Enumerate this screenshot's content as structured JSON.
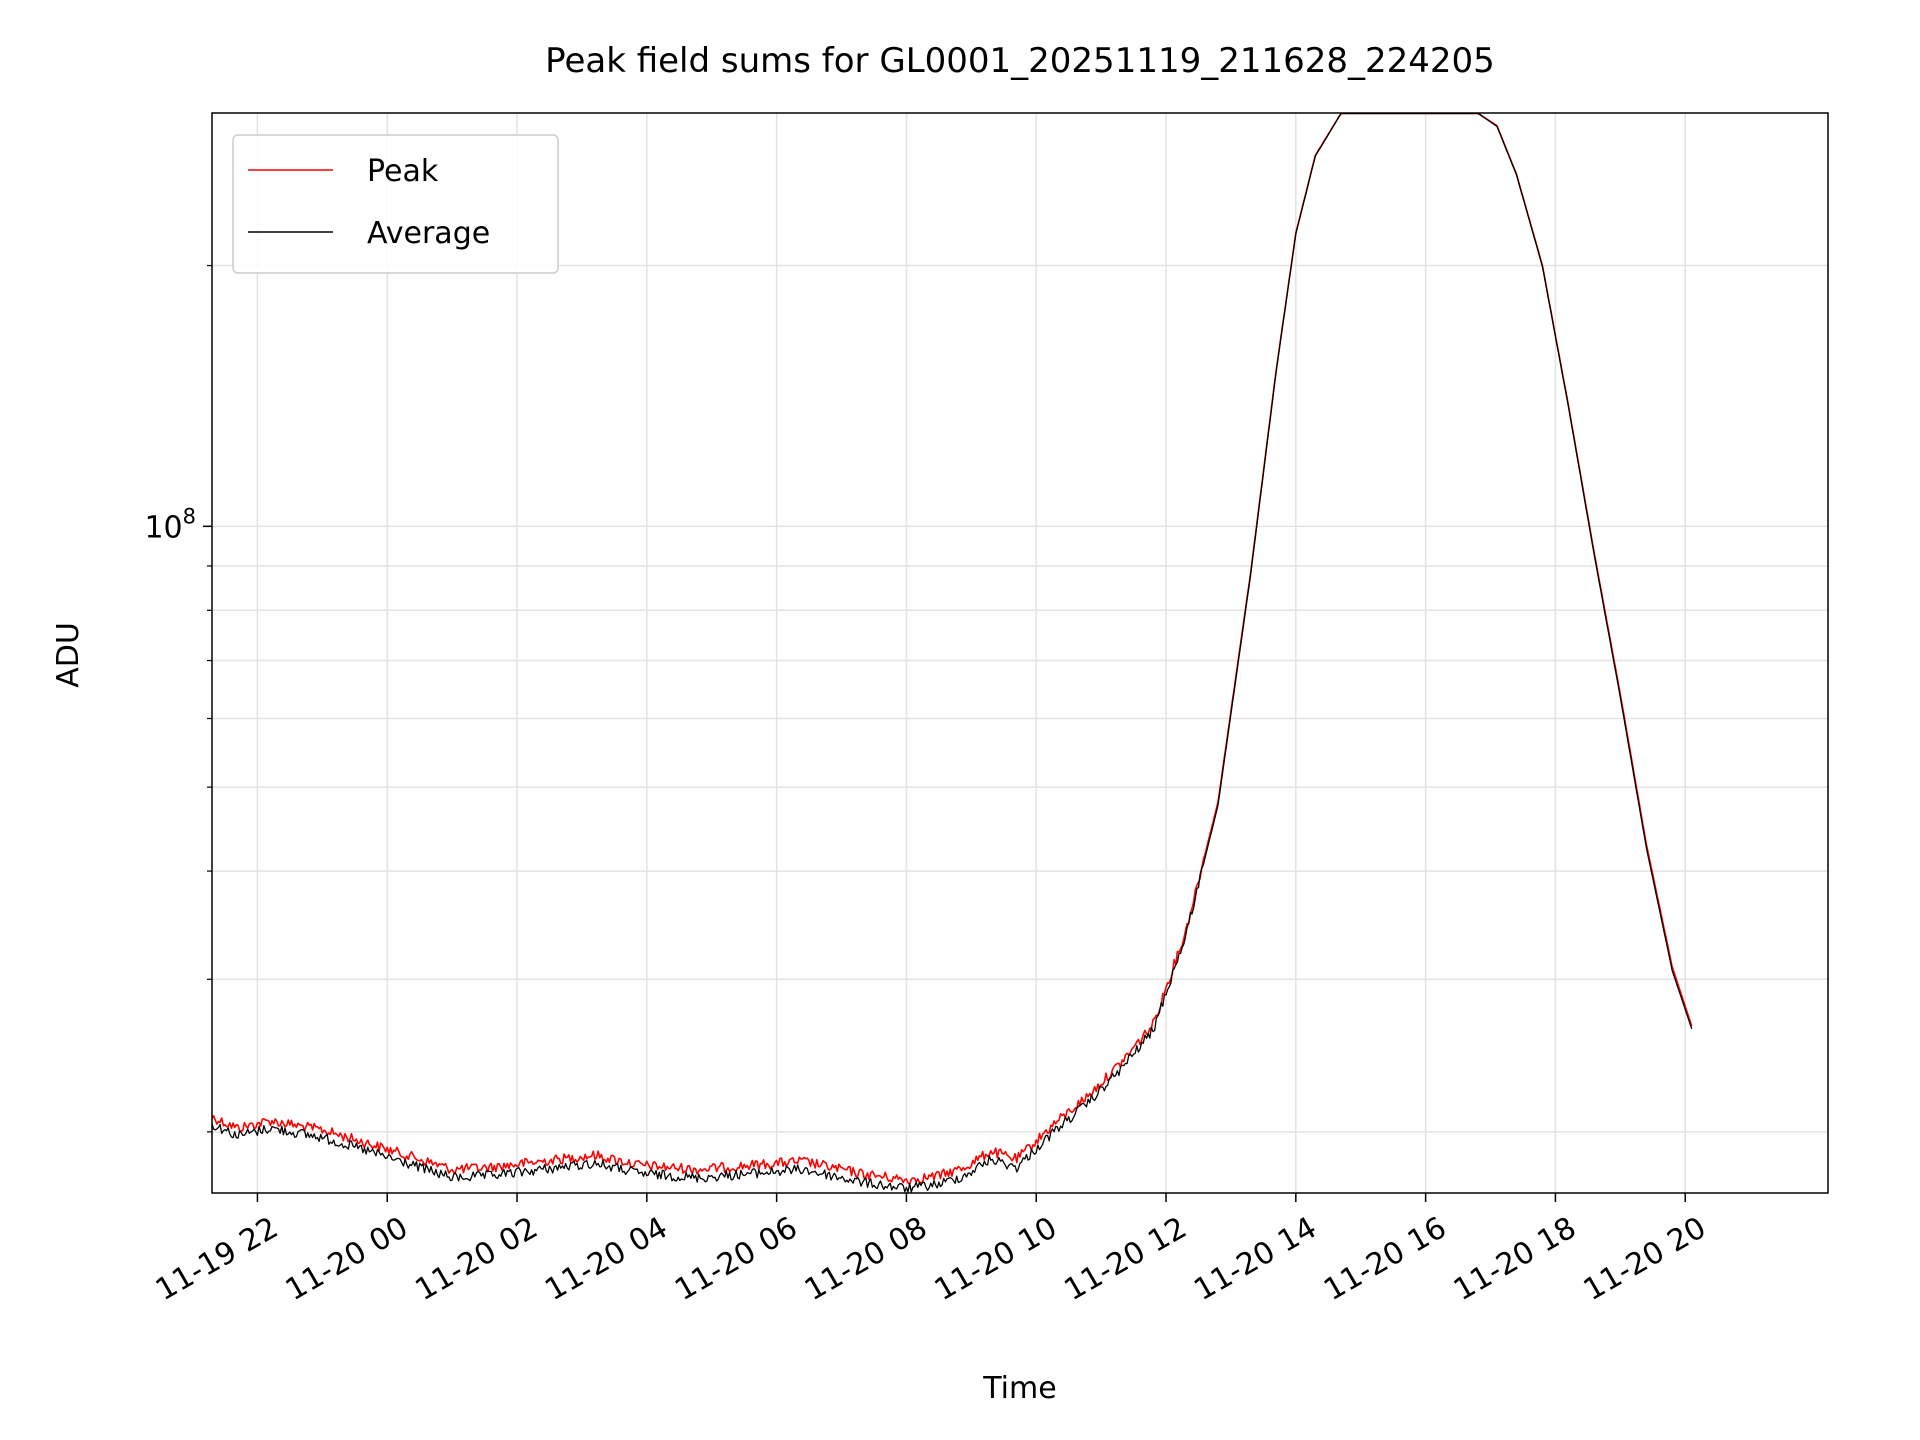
{
  "chart_data": {
    "type": "line",
    "title": "Peak field sums for GL0001_20251119_211628_224205",
    "xlabel": "Time",
    "ylabel": "ADU",
    "yscale": "log",
    "ylim": [
      17000000,
      300000000
    ],
    "xlim_hours": [
      -2.7,
      22.2
    ],
    "grid": true,
    "legend_location": "upper-left",
    "x_ticks": [
      {
        "hours": -2,
        "label": "11-19 22"
      },
      {
        "hours": 0,
        "label": "11-20 00"
      },
      {
        "hours": 2,
        "label": "11-20 02"
      },
      {
        "hours": 4,
        "label": "11-20 04"
      },
      {
        "hours": 6,
        "label": "11-20 06"
      },
      {
        "hours": 8,
        "label": "11-20 08"
      },
      {
        "hours": 10,
        "label": "11-20 10"
      },
      {
        "hours": 12,
        "label": "11-20 12"
      },
      {
        "hours": 14,
        "label": "11-20 14"
      },
      {
        "hours": 16,
        "label": "11-20 16"
      },
      {
        "hours": 18,
        "label": "11-20 18"
      },
      {
        "hours": 20,
        "label": "11-20 20"
      }
    ],
    "y_major_ticks": [
      {
        "value": 100000000,
        "base": "10",
        "exp": "8"
      }
    ],
    "y_minor_ticks": [
      20000000,
      30000000,
      40000000,
      50000000,
      60000000,
      70000000,
      80000000,
      90000000,
      200000000
    ],
    "series": [
      {
        "name": "Peak",
        "color": "#ff0000",
        "points_hours_adu": [
          [
            -2.7,
            20800000
          ],
          [
            -2.3,
            20200000
          ],
          [
            -1.8,
            20600000
          ],
          [
            -1.0,
            20100000
          ],
          [
            -0.3,
            19400000
          ],
          [
            0.4,
            18700000
          ],
          [
            1.0,
            18100000
          ],
          [
            1.6,
            18200000
          ],
          [
            2.4,
            18500000
          ],
          [
            3.2,
            18800000
          ],
          [
            3.9,
            18300000
          ],
          [
            4.8,
            18100000
          ],
          [
            5.6,
            18300000
          ],
          [
            6.4,
            18500000
          ],
          [
            7.3,
            17900000
          ],
          [
            8.0,
            17600000
          ],
          [
            8.5,
            17800000
          ],
          [
            8.9,
            18200000
          ],
          [
            9.3,
            19000000
          ],
          [
            9.7,
            18600000
          ],
          [
            10.3,
            20500000
          ],
          [
            10.8,
            22000000
          ],
          [
            11.3,
            24000000
          ],
          [
            11.8,
            26600000
          ],
          [
            12.3,
            34000000
          ],
          [
            12.8,
            48000000
          ],
          [
            13.3,
            88000000
          ],
          [
            13.7,
            152000000
          ],
          [
            14.0,
            218000000
          ],
          [
            14.3,
            268000000
          ],
          [
            14.7,
            300000000
          ],
          [
            15.5,
            300000000
          ],
          [
            16.3,
            300000000
          ],
          [
            16.8,
            300000000
          ],
          [
            17.1,
            290000000
          ],
          [
            17.4,
            255000000
          ],
          [
            17.8,
            200000000
          ],
          [
            18.2,
            138000000
          ],
          [
            18.6,
            93000000
          ],
          [
            19.0,
            64000000
          ],
          [
            19.4,
            43000000
          ],
          [
            19.8,
            31000000
          ],
          [
            20.1,
            26500000
          ]
        ]
      },
      {
        "name": "Average",
        "color": "#000000",
        "points_hours_adu": [
          [
            -2.7,
            20400000
          ],
          [
            -2.3,
            19800000
          ],
          [
            -1.8,
            20200000
          ],
          [
            -1.0,
            19700000
          ],
          [
            -0.3,
            19000000
          ],
          [
            0.4,
            18300000
          ],
          [
            1.0,
            17700000
          ],
          [
            1.6,
            17800000
          ],
          [
            2.4,
            18100000
          ],
          [
            3.2,
            18400000
          ],
          [
            3.9,
            17900000
          ],
          [
            4.8,
            17700000
          ],
          [
            5.6,
            17900000
          ],
          [
            6.4,
            18100000
          ],
          [
            7.3,
            17500000
          ],
          [
            8.0,
            17200000
          ],
          [
            8.5,
            17400000
          ],
          [
            8.9,
            17800000
          ],
          [
            9.3,
            18600000
          ],
          [
            9.7,
            18200000
          ],
          [
            10.3,
            20100000
          ],
          [
            10.8,
            21600000
          ],
          [
            11.3,
            23600000
          ],
          [
            11.8,
            26200000
          ],
          [
            12.3,
            33600000
          ],
          [
            12.8,
            47600000
          ],
          [
            13.3,
            87500000
          ],
          [
            13.7,
            151500000
          ],
          [
            14.0,
            217500000
          ],
          [
            14.3,
            267500000
          ],
          [
            14.7,
            300000000
          ],
          [
            15.5,
            300000000
          ],
          [
            16.3,
            300000000
          ],
          [
            16.8,
            300000000
          ],
          [
            17.1,
            289500000
          ],
          [
            17.4,
            254500000
          ],
          [
            17.8,
            199500000
          ],
          [
            18.2,
            137500000
          ],
          [
            18.6,
            92500000
          ],
          [
            19.0,
            63500000
          ],
          [
            19.4,
            42600000
          ],
          [
            19.8,
            30700000
          ],
          [
            20.1,
            26300000
          ]
        ]
      }
    ]
  }
}
